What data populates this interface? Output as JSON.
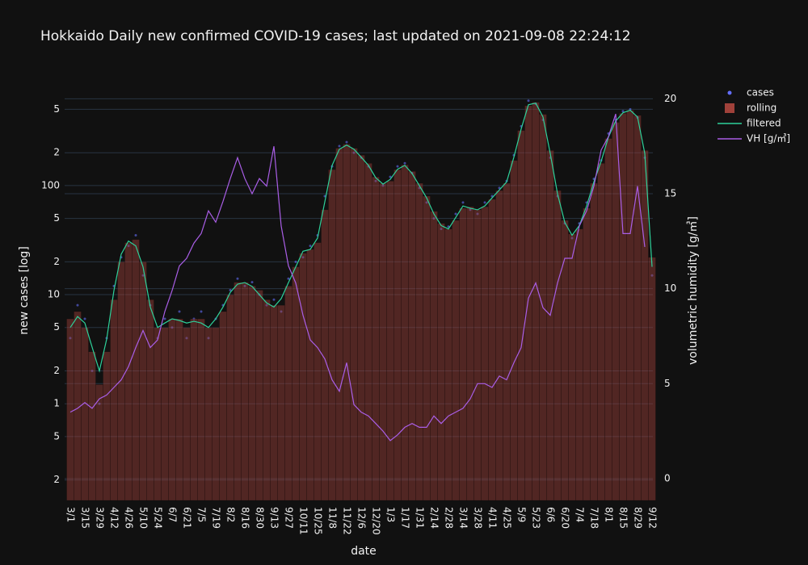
{
  "chart_data": {
    "type": "combo",
    "title": "Hokkaido Daily new confirmed COVID-19 cases; last updated on 2021-09-08 22:24:12",
    "x_label": "date",
    "y_label": "new cases [log]",
    "y2_label": "volumetric humidity [g/㎥]",
    "log_scale": true,
    "grid": true,
    "legend": "right",
    "categories": [
      "3/1",
      null,
      "3/15",
      null,
      "3/29",
      null,
      "4/12",
      null,
      "4/26",
      null,
      "5/10",
      null,
      "5/24",
      null,
      "6/7",
      null,
      "6/21",
      null,
      "7/5",
      null,
      "7/19",
      null,
      "8/2",
      null,
      "8/16",
      null,
      "8/30",
      null,
      "9/13",
      null,
      "9/27",
      null,
      "10/11",
      null,
      "10/25",
      null,
      "11/8",
      null,
      "11/22",
      null,
      "12/6",
      null,
      "12/20",
      null,
      "1/3",
      null,
      "1/17",
      null,
      "1/31",
      null,
      "2/14",
      null,
      "2/28",
      null,
      "3/14",
      null,
      "3/28",
      null,
      "4/11",
      null,
      "4/25",
      null,
      "5/9",
      null,
      "5/23",
      null,
      "6/6",
      null,
      "6/20",
      null,
      "7/4",
      null,
      "7/18",
      null,
      "8/1",
      null,
      "8/15",
      null,
      "8/29",
      null,
      "9/12"
    ],
    "ylim": [
      0.13,
      650
    ],
    "yticks": [
      {
        "value": 0.2,
        "label": "2"
      },
      {
        "value": 0.5,
        "label": "5"
      },
      1,
      {
        "value": 2,
        "label": "2"
      },
      {
        "value": 5,
        "label": "5"
      },
      10,
      {
        "value": 20,
        "label": "2"
      },
      {
        "value": 50,
        "label": "5"
      },
      100,
      {
        "value": 200,
        "label": "2"
      },
      {
        "value": 500,
        "label": "5"
      }
    ],
    "y2lim": [
      -1.15,
      20.1
    ],
    "y2ticks": [
      0,
      5,
      10,
      15,
      20
    ],
    "series": [
      {
        "name": "cases",
        "type": "scatter",
        "color": "#636efa",
        "values": [
          4,
          8,
          6,
          2,
          1,
          4,
          12,
          22,
          28,
          35,
          15,
          8,
          4,
          6,
          5,
          7,
          4,
          6,
          7,
          4,
          6,
          8,
          11,
          14,
          12,
          13,
          10,
          8,
          9,
          7,
          14,
          20,
          22,
          28,
          35,
          80,
          150,
          230,
          250,
          200,
          180,
          150,
          110,
          100,
          120,
          150,
          160,
          130,
          95,
          70,
          50,
          40,
          42,
          55,
          70,
          60,
          55,
          70,
          80,
          95,
          110,
          190,
          350,
          600,
          560,
          400,
          180,
          80,
          45,
          33,
          45,
          70,
          115,
          170,
          300,
          400,
          480,
          500,
          420,
          180,
          15
        ]
      },
      {
        "name": "rolling",
        "type": "bar",
        "color": "#a0413a",
        "values": [
          6,
          7,
          5,
          3,
          1.5,
          3,
          9,
          20,
          30,
          32,
          20,
          9,
          5,
          5,
          6,
          6,
          5,
          6,
          6,
          5,
          5,
          7,
          10,
          13,
          13,
          12,
          11,
          9,
          8,
          8,
          12,
          18,
          24,
          26,
          30,
          60,
          140,
          220,
          240,
          220,
          190,
          160,
          120,
          105,
          110,
          140,
          155,
          135,
          105,
          80,
          58,
          45,
          40,
          48,
          62,
          64,
          60,
          64,
          75,
          90,
          105,
          170,
          320,
          540,
          580,
          450,
          210,
          90,
          48,
          36,
          40,
          62,
          105,
          160,
          270,
          380,
          460,
          490,
          440,
          210,
          22
        ]
      },
      {
        "name": "filtered",
        "type": "line",
        "color": "#2ed19a",
        "values": [
          5.0,
          6.3,
          5.5,
          3.3,
          2.0,
          3.9,
          10.9,
          23.5,
          31,
          28,
          18,
          7.7,
          5.0,
          5.5,
          6.0,
          5.8,
          5.5,
          5.7,
          5.5,
          5.0,
          6.0,
          7.7,
          10.5,
          12.5,
          12.9,
          11.9,
          10,
          8.4,
          7.7,
          9.2,
          12.9,
          18,
          25,
          26,
          33,
          71,
          153,
          215,
          235,
          215,
          182,
          153,
          118,
          103,
          114,
          141,
          153,
          129,
          100,
          77,
          55,
          43,
          40,
          51,
          65,
          62,
          60,
          65,
          77,
          91,
          108,
          182,
          330,
          550,
          570,
          425,
          197,
          84,
          46,
          35,
          43,
          65,
          108,
          167,
          278,
          390,
          465,
          490,
          425,
          197,
          18
        ]
      },
      {
        "name": "VH [g/㎥]",
        "type": "line",
        "axis": "y2",
        "color": "#a95ee6",
        "values": [
          3.5,
          3.7,
          4.0,
          3.7,
          4.2,
          4.4,
          4.8,
          5.2,
          5.9,
          6.9,
          7.8,
          6.9,
          7.3,
          8.8,
          9.9,
          11.2,
          11.6,
          12.4,
          12.9,
          14.1,
          13.5,
          14.6,
          15.8,
          16.9,
          15.8,
          15.0,
          15.8,
          15.4,
          17.5,
          13.3,
          11.2,
          10.3,
          8.6,
          7.3,
          6.9,
          6.3,
          5.2,
          4.6,
          6.1,
          3.9,
          3.5,
          3.3,
          2.9,
          2.5,
          2.0,
          2.3,
          2.7,
          2.9,
          2.7,
          2.7,
          3.3,
          2.9,
          3.3,
          3.5,
          3.7,
          4.2,
          5.0,
          5.0,
          4.8,
          5.4,
          5.2,
          6.1,
          6.9,
          9.5,
          10.3,
          9.0,
          8.6,
          10.3,
          11.6,
          11.6,
          13.3,
          14.1,
          15.4,
          17.3,
          18.0,
          19.2,
          12.9,
          12.9,
          15.4,
          12.2,
          null
        ]
      }
    ]
  }
}
